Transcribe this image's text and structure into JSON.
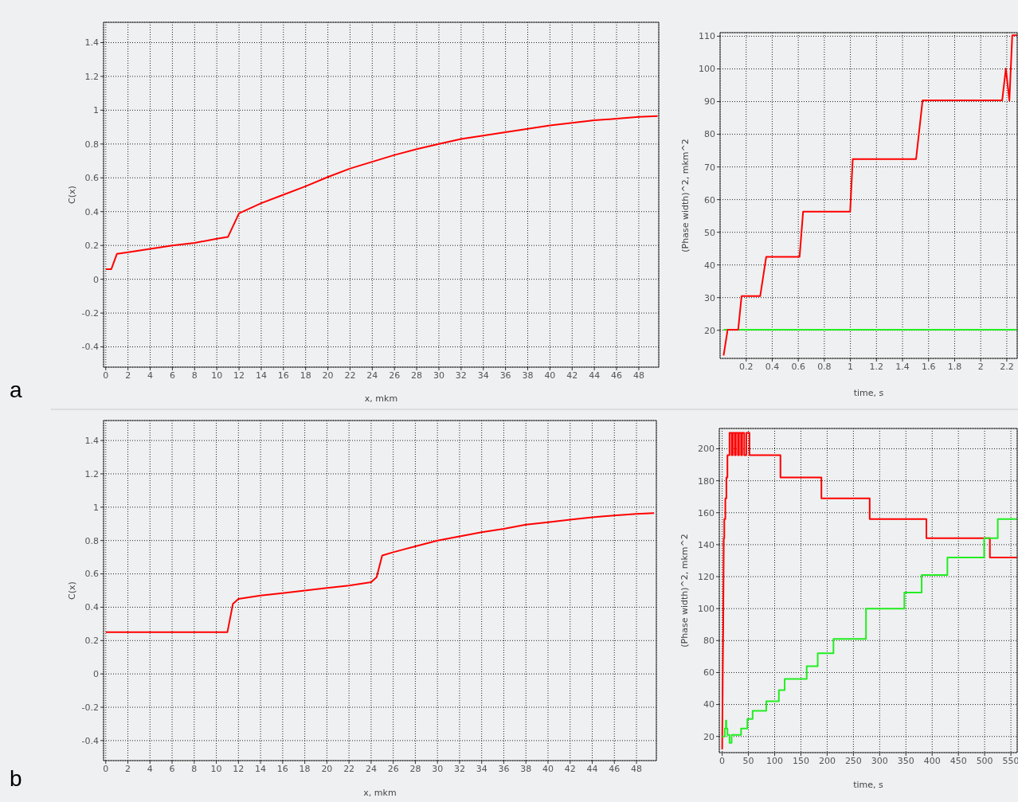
{
  "chart_data": [
    {
      "type": "line",
      "xlabel": "x, mkm",
      "ylabel": "C(x)",
      "annotations": [
        "a"
      ],
      "xlim": [
        -0.2,
        49.8
      ],
      "ylim": [
        -0.52,
        1.52
      ],
      "xticks": [
        0,
        2,
        4,
        6,
        8,
        10,
        12,
        14,
        16,
        18,
        20,
        22,
        24,
        26,
        28,
        30,
        32,
        34,
        36,
        38,
        40,
        42,
        44,
        46,
        48
      ],
      "yticks": [
        -0.4,
        -0.2,
        0,
        0.2,
        0.4,
        0.6,
        0.8,
        1,
        1.2,
        1.4
      ],
      "grid": true,
      "legend": false,
      "line_style": "solid",
      "marker": "none",
      "series": [
        {
          "color": "#ff0000",
          "x": [
            0,
            0.5,
            1,
            2,
            4,
            6,
            8,
            10,
            11,
            12,
            14,
            16,
            18,
            20,
            22,
            24,
            26,
            28,
            30,
            32,
            34,
            36,
            38,
            40,
            42,
            44,
            46,
            48,
            49.7
          ],
          "values": [
            0.06,
            0.06,
            0.15,
            0.16,
            0.18,
            0.2,
            0.215,
            0.24,
            0.25,
            0.39,
            0.45,
            0.5,
            0.55,
            0.605,
            0.655,
            0.695,
            0.735,
            0.77,
            0.8,
            0.83,
            0.85,
            0.87,
            0.89,
            0.91,
            0.925,
            0.94,
            0.95,
            0.96,
            0.965
          ]
        }
      ]
    },
    {
      "type": "line",
      "xlabel": "time, s",
      "ylabel": "(Phase width)^2, mkm^2",
      "xlim": [
        0,
        2.28
      ],
      "ylim": [
        11.4,
        111.1
      ],
      "xticks": [
        0.2,
        0.4,
        0.6,
        0.8,
        1,
        1.2,
        1.4,
        1.6,
        1.8,
        2,
        2.2
      ],
      "yticks": [
        20,
        30,
        40,
        50,
        60,
        70,
        80,
        90,
        100,
        110
      ],
      "grid": true,
      "legend": false,
      "line_style": "solid",
      "marker": "none",
      "series": [
        {
          "color": "#22ee22",
          "x": [
            0.027,
            2.28
          ],
          "values": [
            20.2,
            20.2
          ]
        },
        {
          "color": "#ff0000",
          "x": [
            0.027,
            0.058,
            0.139,
            0.165,
            0.308,
            0.354,
            0.61,
            0.637,
            0.998,
            1.018,
            1.504,
            1.554,
            2.165,
            2.193,
            2.22,
            2.242,
            2.28
          ],
          "values": [
            12.3,
            20.2,
            20.2,
            30.5,
            30.5,
            42.5,
            42.5,
            56.3,
            56.3,
            72.4,
            72.4,
            90.4,
            90.4,
            100.1,
            90.3,
            110.3,
            110.3
          ]
        }
      ]
    },
    {
      "type": "line",
      "xlabel": "x, mkm",
      "ylabel": "C(x)",
      "annotations": [
        "b"
      ],
      "xlim": [
        -0.2,
        49.8
      ],
      "ylim": [
        -0.52,
        1.52
      ],
      "xticks": [
        0,
        2,
        4,
        6,
        8,
        10,
        12,
        14,
        16,
        18,
        20,
        22,
        24,
        26,
        28,
        30,
        32,
        34,
        36,
        38,
        40,
        42,
        44,
        46,
        48
      ],
      "yticks": [
        -0.4,
        -0.2,
        0,
        0.2,
        0.4,
        0.6,
        0.8,
        1,
        1.2,
        1.4
      ],
      "grid": true,
      "legend": false,
      "line_style": "solid",
      "marker": "none",
      "series": [
        {
          "color": "#ff0000",
          "x": [
            0,
            11,
            11.5,
            12,
            14,
            16,
            18,
            20,
            22,
            24,
            24.5,
            25,
            26,
            28,
            30,
            32,
            34,
            36,
            38,
            40,
            42,
            44,
            46,
            48,
            49.6
          ],
          "values": [
            0.25,
            0.25,
            0.42,
            0.45,
            0.47,
            0.485,
            0.5,
            0.515,
            0.53,
            0.55,
            0.58,
            0.71,
            0.73,
            0.765,
            0.8,
            0.825,
            0.85,
            0.87,
            0.895,
            0.91,
            0.925,
            0.94,
            0.95,
            0.96,
            0.965
          ]
        }
      ]
    },
    {
      "type": "line",
      "xlabel": "time, s",
      "ylabel": "(Phase width)^2, mkm^2",
      "xlim": [
        -5.5,
        562
      ],
      "ylim": [
        9.9,
        212.7
      ],
      "xticks": [
        0,
        50,
        100,
        150,
        200,
        250,
        300,
        350,
        400,
        450,
        500,
        550
      ],
      "yticks": [
        20,
        40,
        60,
        80,
        100,
        120,
        140,
        160,
        180,
        200
      ],
      "grid": true,
      "legend": false,
      "line_style": "solid",
      "marker": "none",
      "series": [
        {
          "color": "#ff0000",
          "x": [
            0,
            1,
            2,
            3,
            4,
            4,
            6,
            6,
            8,
            8,
            10,
            10,
            14,
            14,
            18,
            18,
            20,
            20,
            24,
            24,
            26,
            26,
            30,
            30,
            32,
            32,
            36,
            36,
            38,
            38,
            42,
            42,
            46,
            46,
            52,
            52,
            111,
            111,
            189,
            189,
            281,
            281,
            389,
            389,
            510,
            510,
            562
          ],
          "values": [
            12,
            56,
            90,
            144,
            144,
            156,
            156,
            169,
            169,
            182,
            182,
            196,
            196,
            210,
            210,
            196,
            196,
            210,
            210,
            196,
            196,
            210,
            210,
            196,
            196,
            210,
            210,
            196,
            196,
            210,
            210,
            196,
            196,
            210,
            210,
            196,
            196,
            182,
            182,
            169,
            169,
            156,
            156,
            144,
            144,
            132,
            132
          ]
        },
        {
          "color": "#22ee22",
          "x": [
            0,
            5,
            5,
            7,
            7,
            8,
            8,
            10,
            10,
            14,
            14,
            18,
            18,
            36,
            36,
            48,
            48,
            58,
            58,
            84,
            84,
            108,
            108,
            119,
            119,
            161,
            161,
            182,
            182,
            212,
            212,
            274,
            274,
            347,
            347,
            380,
            380,
            429,
            429,
            499,
            499,
            525,
            525,
            562
          ],
          "values": [
            20,
            20,
            25,
            25,
            30,
            30,
            25,
            25,
            21,
            21,
            16,
            16,
            21,
            21,
            25,
            25,
            31,
            31,
            36,
            36,
            42,
            42,
            49,
            49,
            56,
            56,
            64,
            64,
            72,
            72,
            81,
            81,
            100,
            100,
            110,
            110,
            121,
            121,
            132,
            132,
            144,
            144,
            156,
            156
          ]
        }
      ]
    }
  ]
}
